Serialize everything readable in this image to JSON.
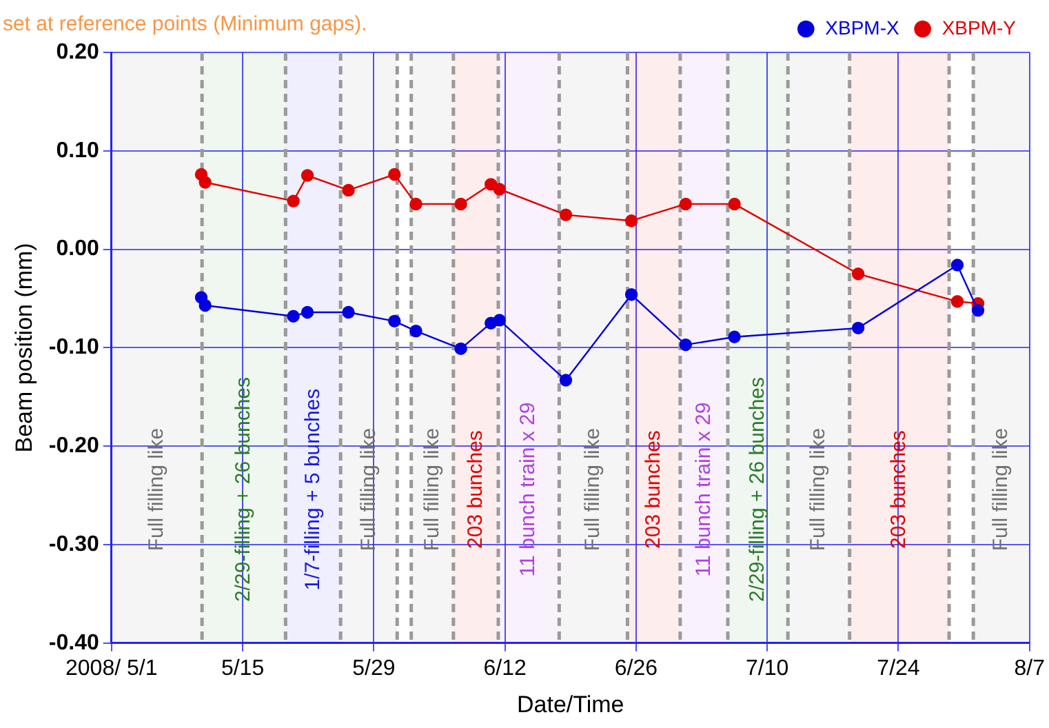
{
  "chart_data": {
    "type": "line",
    "xlabel": "Date/Time",
    "ylabel": "Beam position (mm)",
    "x": [
      "2008-05-10T14:00",
      "2008-05-11",
      "2008-05-20T10:00",
      "2008-05-21T22:00",
      "2008-05-26T07:00",
      "2008-05-31T05:00",
      "2008-06-02T12:00",
      "2008-06-07T07:00",
      "2008-06-10T12:00",
      "2008-06-11T10:00",
      "2008-06-18T12:00",
      "2008-06-25T12:00",
      "2008-07-01T07:00",
      "2008-07-06T12:00",
      "2008-07-19T17:00",
      "2008-07-30T07:00",
      "2008-08-01T12:00"
    ],
    "series": [
      {
        "name": "XBPM-X",
        "color": "#0000e0",
        "values": [
          -0.049,
          -0.057,
          -0.068,
          -0.064,
          -0.064,
          -0.073,
          -0.083,
          -0.101,
          -0.075,
          -0.072,
          -0.133,
          -0.046,
          -0.097,
          -0.089,
          -0.08,
          -0.016,
          -0.062
        ]
      },
      {
        "name": "XBPM-Y",
        "color": "#e00000",
        "values": [
          0.076,
          0.068,
          0.049,
          0.075,
          0.06,
          0.076,
          0.046,
          0.046,
          0.066,
          0.061,
          0.035,
          0.029,
          0.046,
          0.046,
          -0.025,
          -0.053,
          -0.055
        ]
      }
    ],
    "marker": "circle",
    "line_style": "solid",
    "grid": true,
    "legend": "top right",
    "xlim": [
      "2008-05-01",
      "2008-08-07"
    ],
    "xticks": [
      {
        "value": "2008-05-01",
        "label": "2008/ 5/1"
      },
      {
        "value": "2008-05-15",
        "label": "5/15"
      },
      {
        "value": "2008-05-29",
        "label": "5/29"
      },
      {
        "value": "2008-06-12",
        "label": "6/12"
      },
      {
        "value": "2008-06-26",
        "label": "6/26"
      },
      {
        "value": "2008-07-10",
        "label": "7/10"
      },
      {
        "value": "2008-07-24",
        "label": "7/24"
      },
      {
        "value": "2008-08-07",
        "label": "8/7"
      }
    ],
    "ylim": [
      -0.4,
      0.2
    ],
    "yticks": [
      {
        "value": -0.4,
        "label": "-0.40"
      },
      {
        "value": -0.3,
        "label": "-0.30"
      },
      {
        "value": -0.2,
        "label": "-0.20"
      },
      {
        "value": -0.1,
        "label": "-0.10"
      },
      {
        "value": 0,
        "label": "0.00"
      },
      {
        "value": 0.1,
        "label": "0.10"
      },
      {
        "value": 0.2,
        "label": "0.20"
      }
    ],
    "ref_lines": [
      {
        "axis": "x",
        "value": "2008-05-10T16:00",
        "color": "#9a9a9a",
        "line_style": "dashed"
      },
      {
        "axis": "x",
        "value": "2008-05-19T14:00",
        "color": "#9a9a9a",
        "line_style": "dashed"
      },
      {
        "axis": "x",
        "value": "2008-05-25T11:00",
        "color": "#9a9a9a",
        "line_style": "dashed"
      },
      {
        "axis": "x",
        "value": "2008-05-31T12:00",
        "color": "#9a9a9a",
        "line_style": "dashed"
      },
      {
        "axis": "x",
        "value": "2008-06-02",
        "color": "#9a9a9a",
        "line_style": "dashed"
      },
      {
        "axis": "x",
        "value": "2008-06-06T12:00",
        "color": "#9a9a9a",
        "line_style": "dashed"
      },
      {
        "axis": "x",
        "value": "2008-06-11T07:00",
        "color": "#9a9a9a",
        "line_style": "dashed"
      },
      {
        "axis": "x",
        "value": "2008-06-17T19:00",
        "color": "#9a9a9a",
        "line_style": "dashed"
      },
      {
        "axis": "x",
        "value": "2008-06-25T02:00",
        "color": "#9a9a9a",
        "line_style": "dashed"
      },
      {
        "axis": "x",
        "value": "2008-06-30T17:00",
        "color": "#9a9a9a",
        "line_style": "dashed"
      },
      {
        "axis": "x",
        "value": "2008-07-05T19:00",
        "color": "#9a9a9a",
        "line_style": "dashed"
      },
      {
        "axis": "x",
        "value": "2008-07-12T05:00",
        "color": "#9a9a9a",
        "line_style": "dashed"
      },
      {
        "axis": "x",
        "value": "2008-07-18T19:00",
        "color": "#9a9a9a",
        "line_style": "dashed"
      },
      {
        "axis": "x",
        "value": "2008-07-29T10:00",
        "color": "#9a9a9a",
        "line_style": "dashed"
      },
      {
        "axis": "x",
        "value": "2008-08-01",
        "color": "#9a9a9a",
        "line_style": "dashed"
      }
    ],
    "bands": [
      {
        "axis": "x",
        "from": "2008-05-01",
        "to": "2008-05-10T16:00",
        "label": "Full filling like",
        "color": "#707070"
      },
      {
        "axis": "x",
        "from": "2008-05-10T16:00",
        "to": "2008-05-19T14:00",
        "label": "2/29-filling + 26 bunches",
        "color": "#2a7a2a"
      },
      {
        "axis": "x",
        "from": "2008-05-19T14:00",
        "to": "2008-05-25T11:00",
        "label": "1/7-filling + 5 bunches",
        "color": "#1a1adc"
      },
      {
        "axis": "x",
        "from": "2008-05-25T11:00",
        "to": "2008-05-31T12:00",
        "label": "Full filling like",
        "color": "#707070"
      },
      {
        "axis": "x",
        "from": "2008-06-02",
        "to": "2008-06-06T12:00",
        "label": "Full filling like",
        "color": "#707070"
      },
      {
        "axis": "x",
        "from": "2008-06-06T12:00",
        "to": "2008-06-11T07:00",
        "label": "203 bunches",
        "color": "#e00000"
      },
      {
        "axis": "x",
        "from": "2008-06-11T07:00",
        "to": "2008-06-17T19:00",
        "label": "11 bunch train x 29",
        "color": "#b040e0"
      },
      {
        "axis": "x",
        "from": "2008-06-17T19:00",
        "to": "2008-06-25T02:00",
        "label": "Full filling like",
        "color": "#707070"
      },
      {
        "axis": "x",
        "from": "2008-06-25T02:00",
        "to": "2008-06-30T17:00",
        "label": "203 bunches",
        "color": "#e00000"
      },
      {
        "axis": "x",
        "from": "2008-06-30T17:00",
        "to": "2008-07-05T19:00",
        "label": "11 bunch train x 29",
        "color": "#b040e0"
      },
      {
        "axis": "x",
        "from": "2008-07-05T19:00",
        "to": "2008-07-12T05:00",
        "label": "2/29-filling + 26 bunches",
        "color": "#2a7a2a"
      },
      {
        "axis": "x",
        "from": "2008-07-12T05:00",
        "to": "2008-07-18T19:00",
        "label": "Full filling like",
        "color": "#707070"
      },
      {
        "axis": "x",
        "from": "2008-07-18T19:00",
        "to": "2008-07-29T10:00",
        "label": "203 bunches",
        "color": "#e00000"
      },
      {
        "axis": "x",
        "from": "2008-08-01",
        "to": "2008-08-07",
        "label": "Full filling like",
        "color": "#707070"
      }
    ],
    "annotations": [
      "set at reference points (Minimum gaps)."
    ]
  }
}
